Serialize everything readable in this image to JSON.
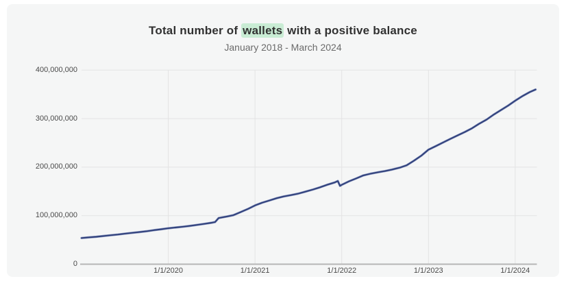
{
  "chart": {
    "title_prefix": "Total number of ",
    "title_highlight": "wallets",
    "title_suffix": " with a positive balance",
    "subtitle": "January 2018 - March 2024"
  },
  "chart_data": {
    "type": "line",
    "title": "Total number of wallets with a positive balance",
    "subtitle": "January 2018 - March 2024",
    "xlabel": "",
    "ylabel": "",
    "y_unit": "wallets",
    "grid": true,
    "legend": "none",
    "x_domain_years": [
      2019.0,
      2024.25
    ],
    "y_domain_millions": [
      0,
      400
    ],
    "y_ticks": [
      {
        "value_millions": 0,
        "label": "0"
      },
      {
        "value_millions": 100,
        "label": "100,000,000"
      },
      {
        "value_millions": 200,
        "label": "200,000,000"
      },
      {
        "value_millions": 300,
        "label": "300,000,000"
      },
      {
        "value_millions": 400,
        "label": "400,000,000"
      }
    ],
    "x_ticks": [
      {
        "year": 2020,
        "label": "1/1/2020"
      },
      {
        "year": 2021,
        "label": "1/1/2021"
      },
      {
        "year": 2022,
        "label": "1/1/2022"
      },
      {
        "year": 2023,
        "label": "1/1/2023"
      },
      {
        "year": 2024,
        "label": "1/1/2024"
      }
    ],
    "series": [
      {
        "name": "Wallets with a positive balance",
        "points_t_year_v_millions": [
          [
            2019.0,
            54
          ],
          [
            2019.08,
            55.2
          ],
          [
            2019.17,
            56.5
          ],
          [
            2019.25,
            58
          ],
          [
            2019.33,
            59.6
          ],
          [
            2019.42,
            61.2
          ],
          [
            2019.5,
            63
          ],
          [
            2019.58,
            64.6
          ],
          [
            2019.67,
            66.2
          ],
          [
            2019.75,
            68
          ],
          [
            2019.83,
            70
          ],
          [
            2019.92,
            72
          ],
          [
            2020.0,
            74
          ],
          [
            2020.08,
            75.6
          ],
          [
            2020.17,
            77.2
          ],
          [
            2020.25,
            79
          ],
          [
            2020.33,
            81
          ],
          [
            2020.42,
            83.2
          ],
          [
            2020.5,
            85.5
          ],
          [
            2020.54,
            86.8
          ],
          [
            2020.58,
            95
          ],
          [
            2020.67,
            98
          ],
          [
            2020.75,
            101
          ],
          [
            2020.83,
            107
          ],
          [
            2020.92,
            114
          ],
          [
            2021.0,
            121
          ],
          [
            2021.08,
            126.5
          ],
          [
            2021.17,
            131.5
          ],
          [
            2021.25,
            136
          ],
          [
            2021.33,
            139.5
          ],
          [
            2021.42,
            142.5
          ],
          [
            2021.5,
            145.5
          ],
          [
            2021.58,
            149.5
          ],
          [
            2021.67,
            154
          ],
          [
            2021.75,
            158.5
          ],
          [
            2021.83,
            163.5
          ],
          [
            2021.92,
            168.5
          ],
          [
            2021.955,
            171.5
          ],
          [
            2021.98,
            161.5
          ],
          [
            2022.0,
            163.5
          ],
          [
            2022.08,
            170.5
          ],
          [
            2022.17,
            177
          ],
          [
            2022.25,
            183
          ],
          [
            2022.33,
            186.5
          ],
          [
            2022.42,
            189.5
          ],
          [
            2022.5,
            192
          ],
          [
            2022.58,
            195
          ],
          [
            2022.67,
            199
          ],
          [
            2022.75,
            204
          ],
          [
            2022.83,
            213
          ],
          [
            2022.92,
            224
          ],
          [
            2023.0,
            236
          ],
          [
            2023.08,
            243
          ],
          [
            2023.17,
            251
          ],
          [
            2023.25,
            258
          ],
          [
            2023.33,
            265
          ],
          [
            2023.42,
            272.5
          ],
          [
            2023.5,
            280
          ],
          [
            2023.58,
            289
          ],
          [
            2023.67,
            298
          ],
          [
            2023.75,
            308
          ],
          [
            2023.83,
            317
          ],
          [
            2023.92,
            327
          ],
          [
            2024.0,
            337
          ],
          [
            2024.08,
            346
          ],
          [
            2024.17,
            355
          ],
          [
            2024.235,
            360
          ]
        ]
      }
    ],
    "annotations": [
      "step up from ~86M to ~95M around mid-2020",
      "brief dip from ~171.5M to ~161.5M at 1/1/2022"
    ],
    "colors": {
      "line": "#30407a",
      "line_halo": "#8492be",
      "grid": "#e3e3e4",
      "axis": "#b6b6b6",
      "panel_bg": "#f5f6f6",
      "page_bg": "#ffffff",
      "title_text": "#313131",
      "subtitle_text": "#6a6a6a",
      "tick_text": "#494949",
      "highlight_bg": "#c9ecd4"
    }
  }
}
